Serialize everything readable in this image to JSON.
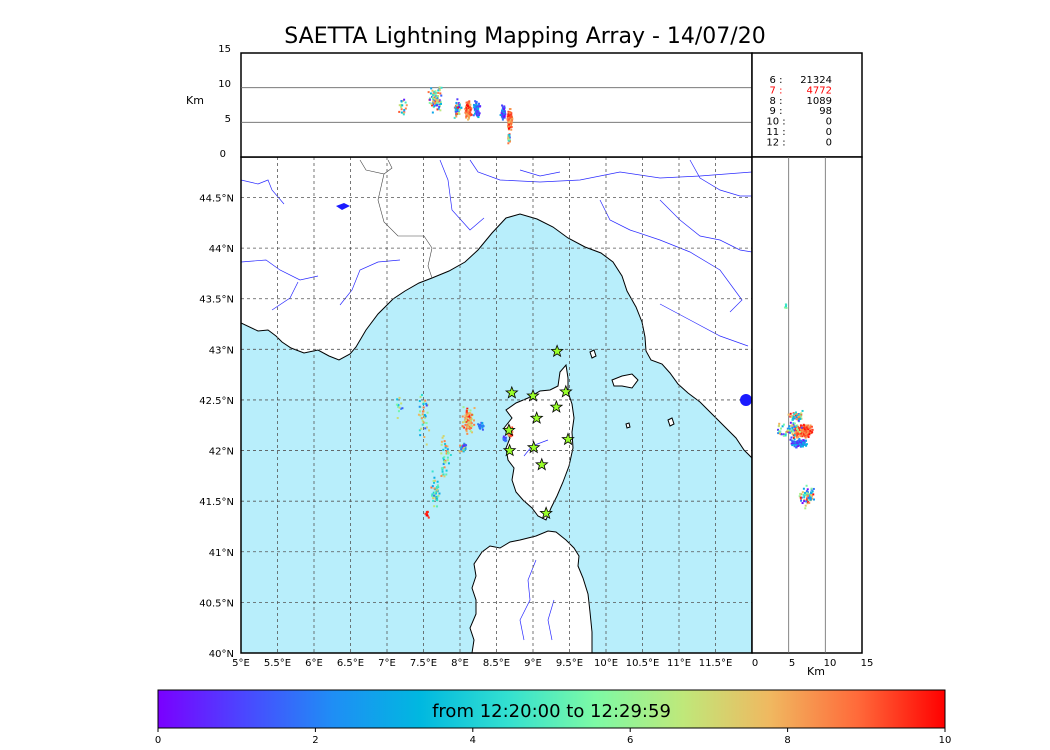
{
  "title": "SAETTA Lightning Mapping Array - 14/07/20",
  "top_panel": {
    "ylabel": "Km",
    "yticks": [
      "15",
      "10",
      "5",
      "0"
    ]
  },
  "side_panel": {
    "xlabel": "Km",
    "xticks": [
      "0",
      "5",
      "10",
      "15"
    ]
  },
  "map": {
    "lon_ticks": [
      "5°E",
      "5.5°E",
      "6°E",
      "6.5°E",
      "7°E",
      "7.5°E",
      "8°E",
      "8.5°E",
      "9°E",
      "9.5°E",
      "10°E",
      "10.5°E",
      "11°E",
      "11.5°E"
    ],
    "lat_ticks": [
      "44.5°N",
      "44°N",
      "43.5°N",
      "43°N",
      "42.5°N",
      "42°N",
      "41.5°N",
      "41°N",
      "40.5°N",
      "40°N"
    ],
    "sea_color": "#b8eefb",
    "land_color": "#ffffff",
    "coast_color": "#000000",
    "river_color": "#2a2aff",
    "station_marker": "star-icon",
    "station_color": "#9aff2a",
    "stations": [
      [
        9.33,
        42.98
      ],
      [
        8.71,
        42.57
      ],
      [
        9.0,
        42.54
      ],
      [
        9.45,
        42.58
      ],
      [
        9.05,
        42.32
      ],
      [
        9.32,
        42.43
      ],
      [
        8.67,
        42.2
      ],
      [
        9.48,
        42.11
      ],
      [
        8.68,
        42.0
      ],
      [
        9.01,
        42.03
      ],
      [
        9.12,
        41.86
      ],
      [
        9.18,
        41.38
      ]
    ],
    "blob_color": "#1a1aff"
  },
  "stats": [
    {
      "n": "6 :",
      "v": "21324",
      "color": "#000000"
    },
    {
      "n": "7 :",
      "v": "4772",
      "color": "#ff0000"
    },
    {
      "n": "8 :",
      "v": "1089",
      "color": "#000000"
    },
    {
      "n": "9 :",
      "v": "98",
      "color": "#000000"
    },
    {
      "n": "10 :",
      "v": "0",
      "color": "#000000"
    },
    {
      "n": "11 :",
      "v": "0",
      "color": "#000000"
    },
    {
      "n": "12 :",
      "v": "0",
      "color": "#000000"
    }
  ],
  "colorbar": {
    "label": "from 12:20:00 to 12:29:59",
    "ticks": [
      "0",
      "2",
      "4",
      "6",
      "8",
      "10"
    ],
    "gradient": [
      "#7a00ff",
      "#4a48ff",
      "#1f8ef5",
      "#00b8e0",
      "#33e0d0",
      "#7dfaa5",
      "#bfe87a",
      "#f0b860",
      "#ff6a3a",
      "#ff0000"
    ]
  },
  "lightning": {
    "clusters": [
      {
        "lon": 7.5,
        "lat": 42.35,
        "w": 0.12,
        "h": 0.3,
        "n": 40,
        "c": [
          0.1,
          0.9
        ]
      },
      {
        "lon": 7.15,
        "lat": 42.45,
        "w": 0.07,
        "h": 0.15,
        "n": 12,
        "c": [
          0.1,
          0.9
        ]
      },
      {
        "lon": 7.78,
        "lat": 41.95,
        "w": 0.1,
        "h": 0.3,
        "n": 45,
        "c": [
          0.2,
          0.9
        ]
      },
      {
        "lon": 7.65,
        "lat": 41.62,
        "w": 0.08,
        "h": 0.25,
        "n": 45,
        "c": [
          0.2,
          0.9
        ]
      },
      {
        "lon": 7.53,
        "lat": 41.38,
        "w": 0.03,
        "h": 0.05,
        "n": 8,
        "c": [
          0.9,
          1.0
        ]
      },
      {
        "lon": 8.1,
        "lat": 42.3,
        "w": 0.1,
        "h": 0.16,
        "n": 90,
        "c": [
          0.6,
          1.0
        ]
      },
      {
        "lon": 8.27,
        "lat": 42.25,
        "w": 0.06,
        "h": 0.05,
        "n": 20,
        "c": [
          0.05,
          0.3
        ]
      },
      {
        "lon": 8.04,
        "lat": 42.04,
        "w": 0.08,
        "h": 0.06,
        "n": 35,
        "c": [
          0.05,
          1.0
        ]
      },
      {
        "lon": 8.67,
        "lat": 42.2,
        "w": 0.06,
        "h": 0.07,
        "n": 40,
        "c": [
          0.8,
          1.0
        ]
      },
      {
        "lon": 8.6,
        "lat": 42.12,
        "w": 0.04,
        "h": 0.05,
        "n": 15,
        "c": [
          0.05,
          0.3
        ]
      }
    ],
    "top_clusters": [
      {
        "lon": 7.65,
        "alt": 8.5,
        "w": 0.12,
        "h": 2.6,
        "n": 90,
        "c": [
          0.0,
          1.0
        ]
      },
      {
        "lon": 7.2,
        "alt": 7.3,
        "w": 0.08,
        "h": 1.8,
        "n": 20,
        "c": [
          0.0,
          1.0
        ]
      },
      {
        "lon": 7.95,
        "alt": 7.0,
        "w": 0.07,
        "h": 1.6,
        "n": 40,
        "c": [
          0.0,
          1.0
        ]
      },
      {
        "lon": 8.1,
        "alt": 6.8,
        "w": 0.06,
        "h": 1.6,
        "n": 110,
        "c": [
          0.75,
          1.0
        ]
      },
      {
        "lon": 8.22,
        "alt": 7.0,
        "w": 0.06,
        "h": 1.6,
        "n": 60,
        "c": [
          0.0,
          0.35
        ]
      },
      {
        "lon": 8.58,
        "alt": 6.5,
        "w": 0.04,
        "h": 1.4,
        "n": 70,
        "c": [
          0.0,
          0.35
        ]
      },
      {
        "lon": 8.67,
        "alt": 5.5,
        "w": 0.04,
        "h": 1.7,
        "n": 200,
        "c": [
          0.75,
          1.0
        ]
      },
      {
        "lon": 8.66,
        "alt": 2.8,
        "w": 0.02,
        "h": 1.0,
        "n": 25,
        "c": [
          0.1,
          1.0
        ]
      }
    ],
    "side_clusters": [
      {
        "alt": 6.8,
        "lat": 42.2,
        "w": 1.6,
        "h": 0.08,
        "n": 260,
        "c": [
          0.8,
          1.0
        ]
      },
      {
        "alt": 6.3,
        "lat": 42.08,
        "w": 1.4,
        "h": 0.05,
        "n": 120,
        "c": [
          0.0,
          0.35
        ]
      },
      {
        "alt": 6.0,
        "lat": 42.35,
        "w": 1.3,
        "h": 0.06,
        "n": 60,
        "c": [
          0.0,
          1.0
        ]
      },
      {
        "alt": 7.5,
        "lat": 41.55,
        "w": 1.4,
        "h": 0.12,
        "n": 70,
        "c": [
          0.0,
          1.0
        ]
      },
      {
        "alt": 5.0,
        "lat": 42.22,
        "w": 2.2,
        "h": 0.1,
        "n": 60,
        "c": [
          0.0,
          1.0
        ]
      },
      {
        "alt": 4.5,
        "lat": 43.43,
        "w": 0.2,
        "h": 0.04,
        "n": 6,
        "c": [
          0.4,
          0.6
        ]
      }
    ]
  }
}
